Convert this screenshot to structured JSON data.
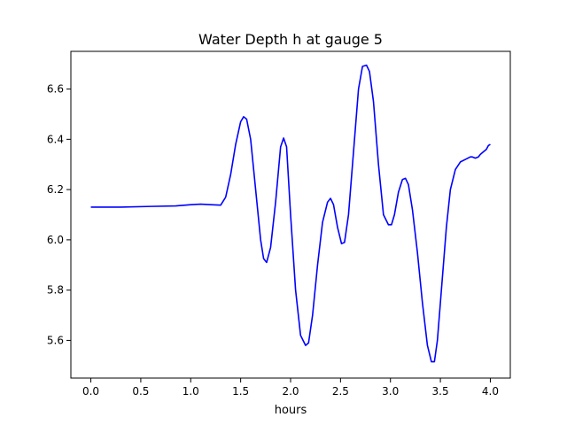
{
  "chart_data": {
    "type": "line",
    "title": "Water Depth h at gauge 5",
    "xlabel": "hours",
    "ylabel": "",
    "xlim": [
      -0.2,
      4.2
    ],
    "ylim": [
      5.45,
      6.75
    ],
    "xticks": [
      0.0,
      0.5,
      1.0,
      1.5,
      2.0,
      2.5,
      3.0,
      3.5,
      4.0
    ],
    "xtick_labels": [
      "0.0",
      "0.5",
      "1.0",
      "1.5",
      "2.0",
      "2.5",
      "3.0",
      "3.5",
      "4.0"
    ],
    "yticks": [
      5.6,
      5.8,
      6.0,
      6.2,
      6.4,
      6.6
    ],
    "ytick_labels": [
      "5.6",
      "5.8",
      "6.0",
      "6.2",
      "6.4",
      "6.6"
    ],
    "grid": false,
    "series": [
      {
        "color": "#0000ff",
        "x": [
          0.0,
          0.3,
          0.6,
          0.85,
          1.0,
          1.1,
          1.2,
          1.3,
          1.35,
          1.4,
          1.45,
          1.5,
          1.53,
          1.56,
          1.6,
          1.65,
          1.7,
          1.73,
          1.76,
          1.8,
          1.85,
          1.9,
          1.93,
          1.96,
          2.0,
          2.05,
          2.1,
          2.15,
          2.18,
          2.22,
          2.27,
          2.32,
          2.37,
          2.4,
          2.43,
          2.47,
          2.51,
          2.54,
          2.58,
          2.63,
          2.68,
          2.72,
          2.76,
          2.79,
          2.83,
          2.88,
          2.93,
          2.98,
          3.01,
          3.04,
          3.08,
          3.12,
          3.15,
          3.18,
          3.22,
          3.27,
          3.32,
          3.37,
          3.41,
          3.44,
          3.47,
          3.51,
          3.56,
          3.6,
          3.65,
          3.7,
          3.75,
          3.8,
          3.82,
          3.85,
          3.88,
          3.9,
          3.93,
          3.96,
          3.98,
          4.0
        ],
        "y": [
          6.13,
          6.13,
          6.133,
          6.135,
          6.14,
          6.142,
          6.14,
          6.138,
          6.17,
          6.26,
          6.38,
          6.47,
          6.49,
          6.48,
          6.4,
          6.2,
          6.0,
          5.925,
          5.91,
          5.97,
          6.15,
          6.37,
          6.405,
          6.37,
          6.1,
          5.8,
          5.62,
          5.58,
          5.59,
          5.7,
          5.9,
          6.07,
          6.15,
          6.165,
          6.14,
          6.05,
          5.985,
          5.99,
          6.1,
          6.35,
          6.6,
          6.69,
          6.695,
          6.67,
          6.55,
          6.3,
          6.1,
          6.06,
          6.06,
          6.1,
          6.19,
          6.24,
          6.245,
          6.22,
          6.12,
          5.95,
          5.75,
          5.58,
          5.515,
          5.515,
          5.6,
          5.8,
          6.05,
          6.2,
          6.28,
          6.31,
          6.32,
          6.33,
          6.33,
          6.325,
          6.33,
          6.34,
          6.35,
          6.36,
          6.375,
          6.38
        ]
      }
    ]
  }
}
